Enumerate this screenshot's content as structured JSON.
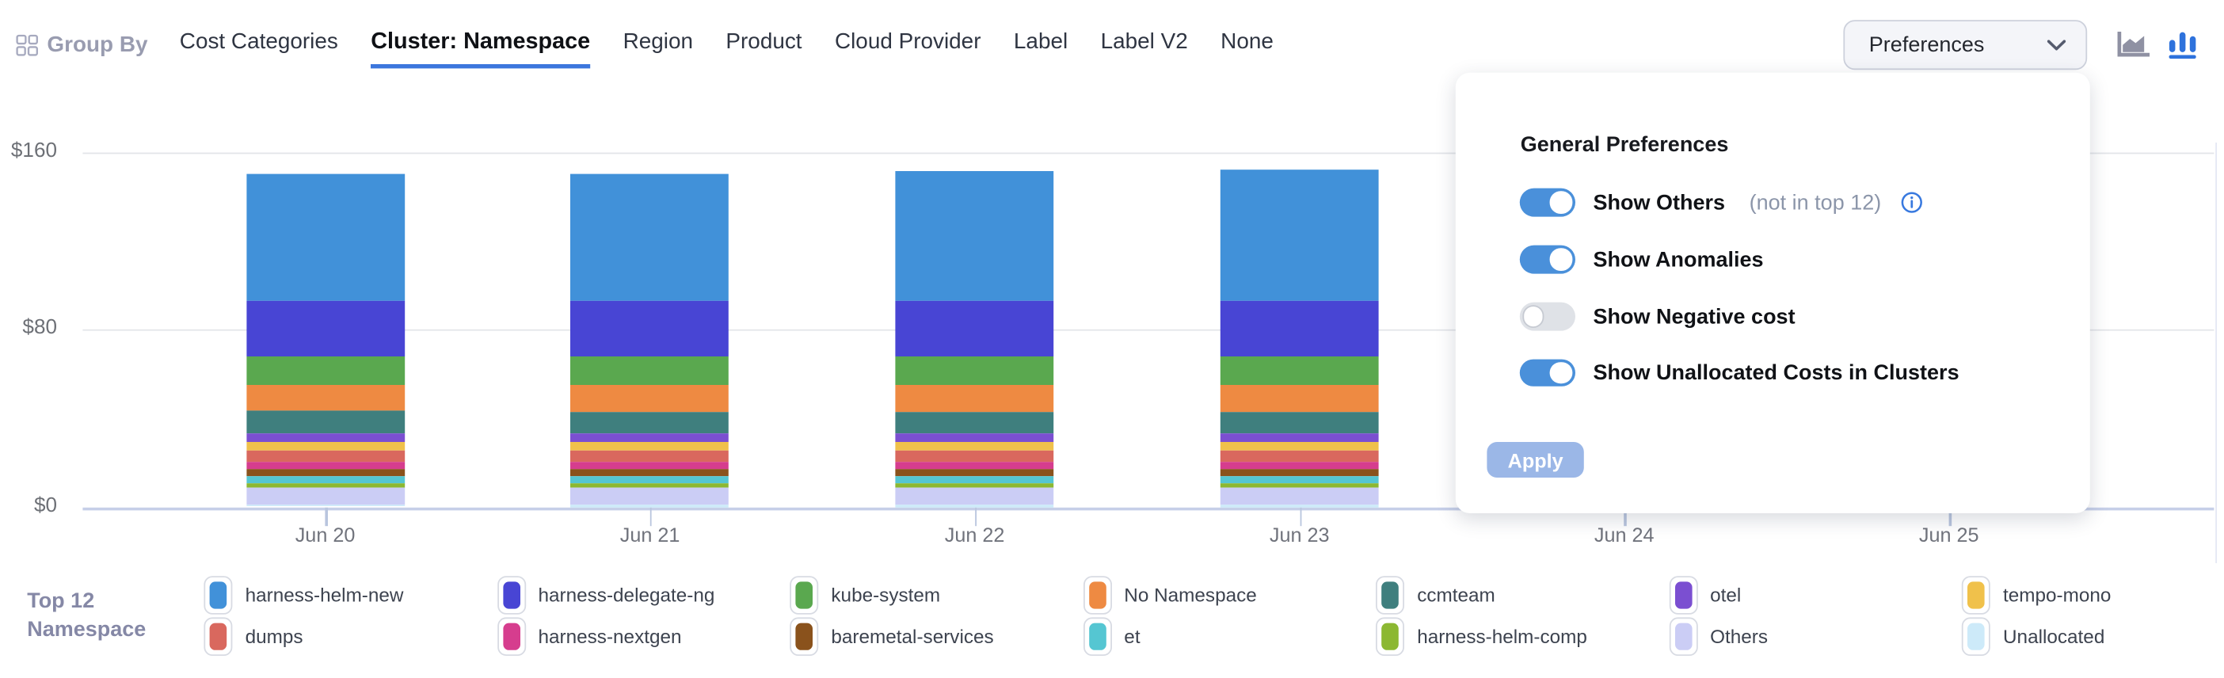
{
  "nav": {
    "group_by_label": "Group By",
    "tabs": [
      {
        "label": "Cost Categories",
        "active": false
      },
      {
        "label": "Cluster: Namespace",
        "active": true
      },
      {
        "label": "Region",
        "active": false
      },
      {
        "label": "Product",
        "active": false
      },
      {
        "label": "Cloud Provider",
        "active": false
      },
      {
        "label": "Label",
        "active": false
      },
      {
        "label": "Label V2",
        "active": false
      },
      {
        "label": "None",
        "active": false
      }
    ],
    "preferences_label": "Preferences"
  },
  "preferences_panel": {
    "title": "General Preferences",
    "toggles": [
      {
        "label": "Show Others",
        "suffix": "(not in top 12)",
        "has_info": true,
        "on": true
      },
      {
        "label": "Show Anomalies",
        "suffix": "",
        "has_info": false,
        "on": true
      },
      {
        "label": "Show Negative cost",
        "suffix": "",
        "has_info": false,
        "on": false
      },
      {
        "label": "Show Unallocated Costs in Clusters",
        "suffix": "",
        "has_info": false,
        "on": true
      }
    ],
    "apply_label": "Apply"
  },
  "legend": {
    "title_line1": "Top 12",
    "title_line2": "Namespace"
  },
  "chart_data": {
    "type": "bar",
    "stacked": true,
    "ylim": [
      0,
      160
    ],
    "y_tick_labels": [
      "$0",
      "$80",
      "$160"
    ],
    "y_tick_values": [
      0,
      80,
      160
    ],
    "x_axis_labels": [
      "Jun 20",
      "Jun 21",
      "Jun 22",
      "Jun 23",
      "Jun 24",
      "Jun 25"
    ],
    "bar_categories": [
      "Jun 20",
      "Jun 21",
      "Jun 22",
      "Jun 23"
    ],
    "grid": true,
    "legend_position": "bottom",
    "series": [
      {
        "name": "harness-helm-new",
        "color": "#4191d9",
        "values": [
          57.3,
          57.3,
          58.9,
          58.7
        ]
      },
      {
        "name": "harness-delegate-ng",
        "color": "#4845d4",
        "values": [
          25.1,
          25.0,
          25.1,
          25.4
        ]
      },
      {
        "name": "kube-system",
        "color": "#5aa84f",
        "values": [
          12.9,
          12.9,
          12.9,
          12.9
        ]
      },
      {
        "name": "No Namespace",
        "color": "#ee8a42",
        "values": [
          11.8,
          11.8,
          11.8,
          11.8
        ]
      },
      {
        "name": "ccmteam",
        "color": "#3f7f7e",
        "values": [
          9.8,
          9.8,
          9.8,
          9.8
        ]
      },
      {
        "name": "otel",
        "color": "#7b4fd1",
        "values": [
          3.8,
          3.8,
          3.8,
          3.8
        ]
      },
      {
        "name": "tempo-mono",
        "color": "#f0c14b",
        "values": [
          3.9,
          3.9,
          3.9,
          3.9
        ]
      },
      {
        "name": "dumps",
        "color": "#d9685e",
        "values": [
          5.1,
          5.1,
          5.1,
          5.1
        ]
      },
      {
        "name": "harness-nextgen",
        "color": "#d63d8e",
        "values": [
          3.6,
          3.6,
          3.6,
          3.6
        ]
      },
      {
        "name": "baremetal-services",
        "color": "#8a521c",
        "values": [
          3.0,
          3.0,
          3.0,
          3.0
        ]
      },
      {
        "name": "et",
        "color": "#55c6d2",
        "values": [
          3.2,
          3.2,
          3.2,
          3.2
        ]
      },
      {
        "name": "harness-helm-comp",
        "color": "#8cb832",
        "values": [
          2.0,
          2.0,
          2.0,
          2.0
        ]
      },
      {
        "name": "Others",
        "color": "#cbcdf5",
        "values": [
          7.5,
          7.5,
          7.5,
          7.5
        ]
      },
      {
        "name": "Unallocated",
        "color": "#cdeaf9",
        "values": [
          1.2,
          1.2,
          1.2,
          1.2
        ]
      }
    ]
  },
  "icons": {
    "group_by": "grid-icon",
    "select_chevron": "chevron-down-icon",
    "area_chart": "area-chart-icon",
    "bar_chart": "bar-chart-icon",
    "info": "info-icon"
  },
  "colors": {
    "accent_blue": "#3c76dd",
    "toggle_on": "#4a90da",
    "toggle_off": "#dfe2e7",
    "apply_disabled": "#9bb7e7",
    "gridline": "#e3e5e9",
    "axis_baseline": "#c6cfe8",
    "axis_text": "#6d7076",
    "legend_title_text": "#8588a6"
  }
}
